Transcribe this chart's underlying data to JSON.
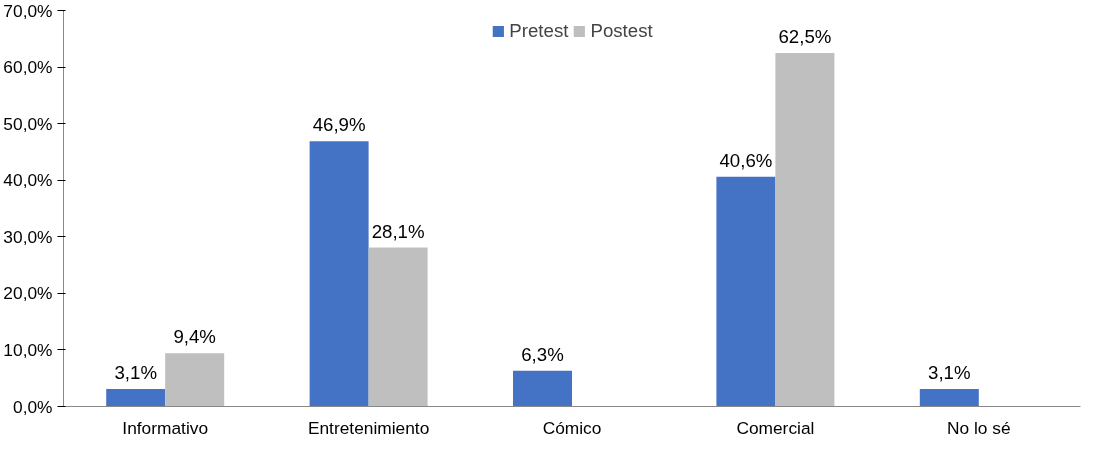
{
  "chart_data": {
    "type": "bar",
    "categories": [
      "Informativo",
      "Entretenimiento",
      "Cómico",
      "Comercial",
      "No lo sé"
    ],
    "series": [
      {
        "name": "Pretest",
        "color": "#4472c4",
        "values": [
          3.1,
          46.9,
          6.3,
          40.6,
          3.1
        ],
        "value_labels": [
          "3,1%",
          "46,9%",
          "6,3%",
          "40,6%",
          "3,1%"
        ]
      },
      {
        "name": "Postest",
        "color": "#bfbfbf",
        "values": [
          9.4,
          28.1,
          null,
          62.5,
          null
        ],
        "value_labels": [
          "9,4%",
          "28,1%",
          null,
          "62,5%",
          null
        ]
      }
    ],
    "ylim": [
      0,
      70
    ],
    "yticks": [
      {
        "value": 0,
        "label": "0,0%"
      },
      {
        "value": 10,
        "label": "10,0%"
      },
      {
        "value": 20,
        "label": "20,0%"
      },
      {
        "value": 30,
        "label": "30,0%"
      },
      {
        "value": 40,
        "label": "40,0%"
      },
      {
        "value": 50,
        "label": "50,0%"
      },
      {
        "value": 60,
        "label": "60,0%"
      },
      {
        "value": 70,
        "label": "70,0%"
      }
    ],
    "grid": false,
    "legend": "top"
  }
}
